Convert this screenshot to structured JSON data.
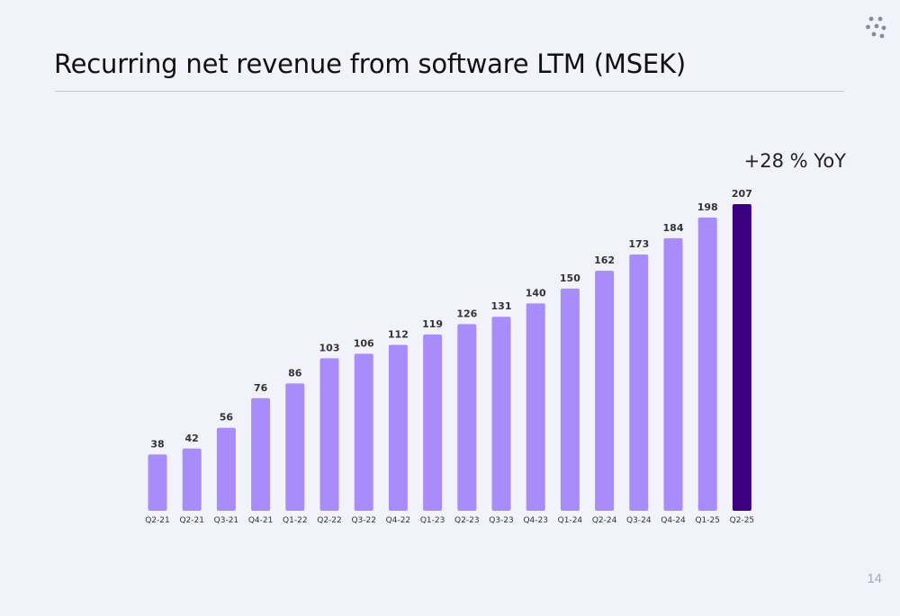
{
  "page": {
    "title": "Recurring net revenue from software LTM (MSEK)",
    "annotation": "+28 % YoY",
    "page_number": "14",
    "logo_icon": "dots-logo-icon"
  },
  "colors": {
    "bar": "#a98cfb",
    "bar_highlight": "#3b0080",
    "background": "#f2f2fa"
  },
  "chart_data": {
    "type": "bar",
    "title": "Recurring net revenue from software LTM (MSEK)",
    "xlabel": "",
    "ylabel": "",
    "categories": [
      "Q2-21",
      "Q2-21",
      "Q3-21",
      "Q4-21",
      "Q1-22",
      "Q2-22",
      "Q3-22",
      "Q4-22",
      "Q1-23",
      "Q2-23",
      "Q3-23",
      "Q4-23",
      "Q1-24",
      "Q2-24",
      "Q3-24",
      "Q4-24",
      "Q1-25",
      "Q2-25"
    ],
    "values": [
      38,
      42,
      56,
      76,
      86,
      103,
      106,
      112,
      119,
      126,
      131,
      140,
      150,
      162,
      173,
      184,
      198,
      207
    ],
    "highlight_index": 17,
    "ylim": [
      0,
      207
    ],
    "grid": false,
    "legend": "none"
  }
}
